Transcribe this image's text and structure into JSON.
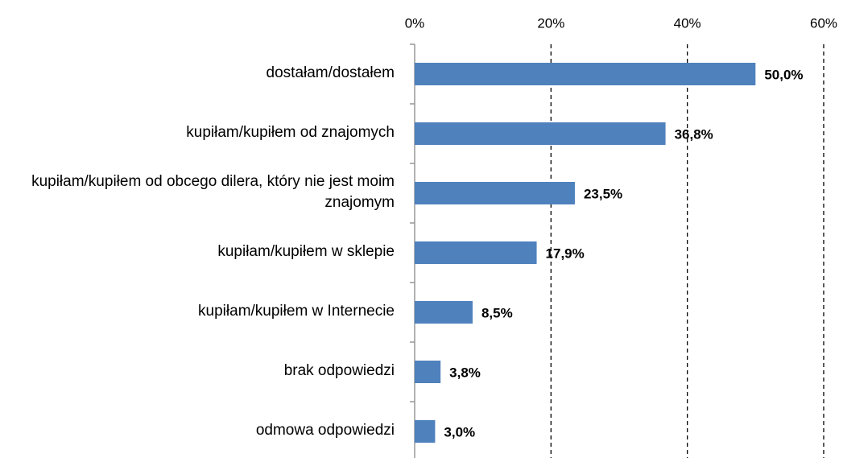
{
  "chart_data": {
    "type": "barh",
    "categories": [
      "dostałam/dostałem",
      "kupiłam/kupiłem od znajomych",
      "kupiłam/kupiłem od obcego dilera, który nie jest moim znajomym",
      "kupiłam/kupiłem w sklepie",
      "kupiłam/kupiłem w Internecie",
      "brak odpowiedzi",
      "odmowa odpowiedzi"
    ],
    "values": [
      50.0,
      36.8,
      23.5,
      17.9,
      8.5,
      3.8,
      3.0
    ],
    "value_labels": [
      "50,0%",
      "36,8%",
      "23,5%",
      "17,9%",
      "8,5%",
      "3,8%",
      "3,0%"
    ],
    "color": "#4f81bd",
    "xlim": [
      0,
      60
    ],
    "xticks": [
      {
        "value": 0,
        "label": "0%"
      },
      {
        "value": 20,
        "label": "20%"
      },
      {
        "value": 40,
        "label": "40%"
      },
      {
        "value": 60,
        "label": "60%"
      }
    ],
    "grid": true
  }
}
